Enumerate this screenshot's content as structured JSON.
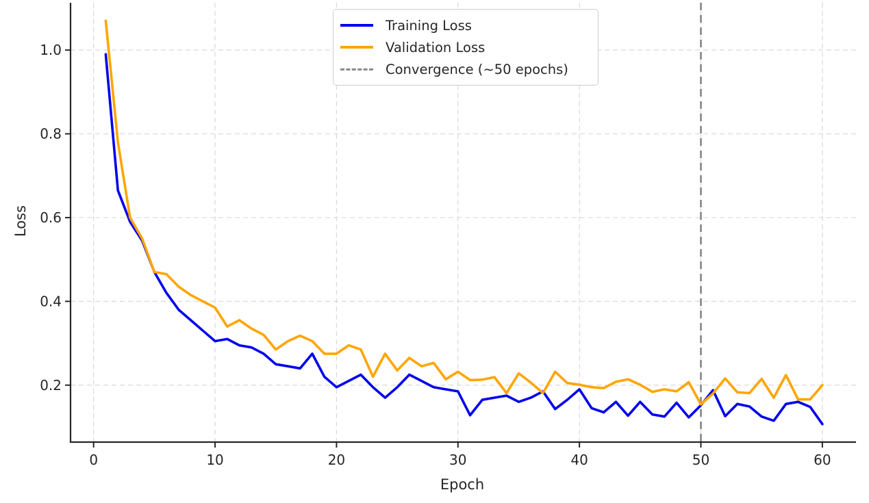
{
  "chart_data": {
    "type": "line",
    "title": "",
    "xlabel": "Epoch",
    "ylabel": "Loss",
    "x": [
      1,
      2,
      3,
      4,
      5,
      6,
      7,
      8,
      9,
      10,
      11,
      12,
      13,
      14,
      15,
      16,
      17,
      18,
      19,
      20,
      21,
      22,
      23,
      24,
      25,
      26,
      27,
      28,
      29,
      30,
      31,
      32,
      33,
      34,
      35,
      36,
      37,
      38,
      39,
      40,
      41,
      42,
      43,
      44,
      45,
      46,
      47,
      48,
      49,
      50,
      51,
      52,
      53,
      54,
      55,
      56,
      57,
      58,
      59,
      60
    ],
    "series": [
      {
        "name": "Training Loss",
        "color": "#0000ee",
        "values": [
          0.99,
          0.665,
          0.59,
          0.545,
          0.47,
          0.42,
          0.38,
          0.355,
          0.33,
          0.305,
          0.31,
          0.295,
          0.29,
          0.275,
          0.25,
          0.245,
          0.24,
          0.275,
          0.22,
          0.195,
          0.21,
          0.225,
          0.195,
          0.17,
          0.195,
          0.225,
          0.21,
          0.195,
          0.19,
          0.185,
          0.128,
          0.165,
          0.17,
          0.175,
          0.16,
          0.17,
          0.185,
          0.143,
          0.165,
          0.19,
          0.145,
          0.135,
          0.16,
          0.127,
          0.16,
          0.13,
          0.125,
          0.158,
          0.123,
          0.152,
          0.188,
          0.126,
          0.155,
          0.149,
          0.125,
          0.115,
          0.155,
          0.16,
          0.148,
          0.107
        ]
      },
      {
        "name": "Validation Loss",
        "color": "#ffa500",
        "values": [
          1.07,
          0.78,
          0.6,
          0.55,
          0.47,
          0.465,
          0.435,
          0.415,
          0.4,
          0.385,
          0.34,
          0.355,
          0.335,
          0.32,
          0.285,
          0.305,
          0.318,
          0.305,
          0.275,
          0.275,
          0.295,
          0.285,
          0.22,
          0.275,
          0.235,
          0.265,
          0.245,
          0.253,
          0.214,
          0.232,
          0.212,
          0.213,
          0.219,
          0.181,
          0.228,
          0.206,
          0.181,
          0.232,
          0.205,
          0.201,
          0.195,
          0.193,
          0.208,
          0.214,
          0.201,
          0.184,
          0.19,
          0.185,
          0.207,
          0.154,
          0.18,
          0.216,
          0.183,
          0.181,
          0.215,
          0.17,
          0.224,
          0.166,
          0.166,
          0.2
        ]
      }
    ],
    "vline": {
      "x": 50,
      "label": "Convergence (~50 epochs)",
      "color": "#808080",
      "style": "dashed"
    },
    "xticks": [
      0,
      10,
      20,
      30,
      40,
      50,
      60
    ],
    "yticks": [
      0.2,
      0.4,
      0.6,
      0.8,
      1.0
    ],
    "xlim": [
      -1.9,
      62.77
    ],
    "ylim": [
      0.064,
      1.113
    ],
    "grid": true,
    "grid_color": "#d9d9d9",
    "axis_color": "#262626",
    "background": "#ffffff",
    "legend_position": "upper center"
  }
}
